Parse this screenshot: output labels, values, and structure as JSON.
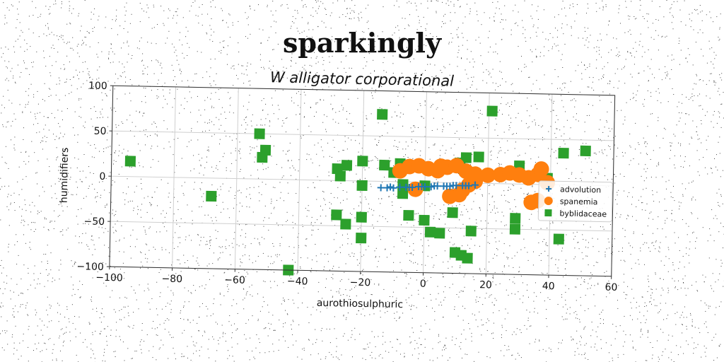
{
  "chart_data": {
    "type": "scatter",
    "title": "sparkingly",
    "subtitle": "W alligator corporational",
    "xlabel": "aurothiosulphuric",
    "ylabel": "humidifiers",
    "xlim": [
      -100,
      60
    ],
    "ylim": [
      -100,
      100
    ],
    "xticks": [
      -100,
      -80,
      -60,
      -40,
      -20,
      0,
      20,
      40,
      60
    ],
    "yticks": [
      -100,
      -50,
      0,
      50,
      100
    ],
    "grid": true,
    "legend_position": "right",
    "series": [
      {
        "name": "advolution",
        "marker": "plus",
        "color": "#1f77b4",
        "points": [
          [
            -14,
            -7
          ],
          [
            -12,
            -7
          ],
          [
            -10,
            -7
          ],
          [
            -8,
            -6
          ],
          [
            -6,
            -6
          ],
          [
            -4,
            -6
          ],
          [
            -2,
            -5
          ],
          [
            0,
            -5
          ],
          [
            2,
            -5
          ],
          [
            4,
            -4
          ],
          [
            6,
            -4
          ],
          [
            8,
            -4
          ],
          [
            10,
            -3
          ],
          [
            12,
            -3
          ],
          [
            14,
            -3
          ],
          [
            16,
            -2
          ],
          [
            -11,
            -6
          ],
          [
            -5,
            -6
          ],
          [
            3,
            -4
          ],
          [
            9,
            -3
          ],
          [
            13,
            -3
          ],
          [
            -1,
            -5
          ],
          [
            7,
            -4
          ]
        ]
      },
      {
        "name": "spanemia",
        "marker": "circle",
        "color": "#ff7f0e",
        "points": [
          [
            -8,
            12
          ],
          [
            -5,
            17
          ],
          [
            -2,
            18
          ],
          [
            1,
            15
          ],
          [
            4,
            13
          ],
          [
            7,
            17
          ],
          [
            10,
            19
          ],
          [
            13,
            13
          ],
          [
            15,
            8
          ],
          [
            16,
            2
          ],
          [
            14,
            -2
          ],
          [
            12,
            -8
          ],
          [
            11,
            -13
          ],
          [
            8,
            -15
          ],
          [
            16,
            10
          ],
          [
            20,
            9
          ],
          [
            24,
            10
          ],
          [
            27,
            12
          ],
          [
            30,
            10
          ],
          [
            33,
            7
          ],
          [
            36,
            11
          ],
          [
            37,
            17
          ],
          [
            39,
            2
          ],
          [
            34,
            -20
          ],
          [
            36,
            -18
          ],
          [
            -3,
            -8
          ],
          [
            5,
            18
          ]
        ]
      },
      {
        "name": "byblidaceae",
        "marker": "square",
        "color": "#2ca02c",
        "points": [
          [
            -94,
            17
          ],
          [
            -68,
            -20
          ],
          [
            -53,
            50
          ],
          [
            -51,
            32
          ],
          [
            -52,
            24
          ],
          [
            -43,
            -100
          ],
          [
            -28,
            13
          ],
          [
            -27,
            5
          ],
          [
            -25,
            17
          ],
          [
            -28,
            -38
          ],
          [
            -25,
            -48
          ],
          [
            -20,
            22
          ],
          [
            -20,
            -5
          ],
          [
            -20,
            -40
          ],
          [
            -20,
            -63
          ],
          [
            -14,
            74
          ],
          [
            -13,
            18
          ],
          [
            -10,
            10
          ],
          [
            -8,
            20
          ],
          [
            -7,
            -3
          ],
          [
            -7,
            -13
          ],
          [
            -5,
            -37
          ],
          [
            0,
            -4
          ],
          [
            0,
            -42
          ],
          [
            2,
            -55
          ],
          [
            5,
            -56
          ],
          [
            9,
            -33
          ],
          [
            10,
            -77
          ],
          [
            12,
            -80
          ],
          [
            14,
            -83
          ],
          [
            11,
            22
          ],
          [
            13,
            28
          ],
          [
            17,
            29
          ],
          [
            15,
            -53
          ],
          [
            21,
            80
          ],
          [
            29,
            -38
          ],
          [
            29,
            -50
          ],
          [
            30,
            20
          ],
          [
            39,
            7
          ],
          [
            43,
            -60
          ],
          [
            44,
            35
          ],
          [
            51,
            38
          ]
        ]
      }
    ]
  }
}
